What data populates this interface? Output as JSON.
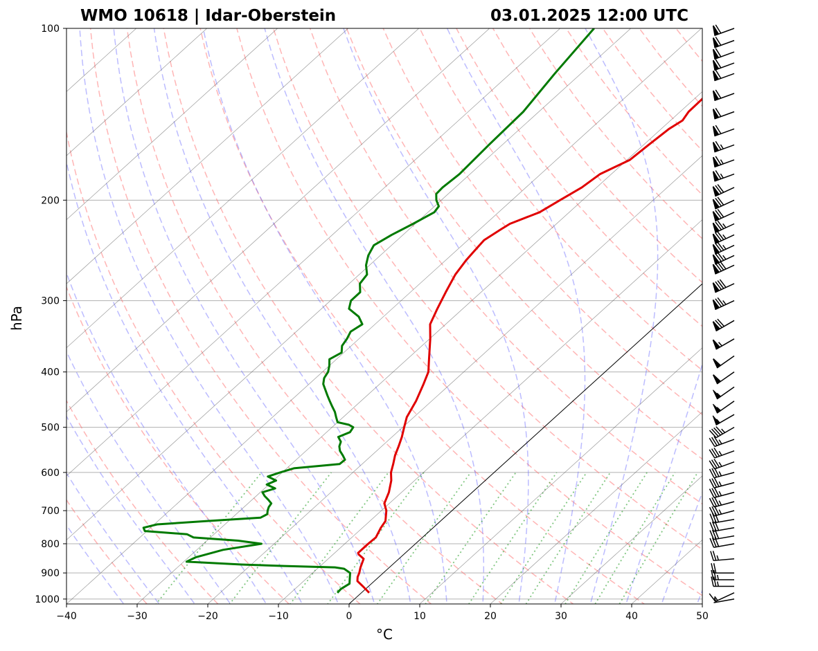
{
  "title_left": "WMO 10618 | Idar-Oberstein",
  "title_right": "03.01.2025 12:00 UTC",
  "colors": {
    "temperature": "#e00000",
    "dewpoint": "#007a00",
    "dry_adiabat": "#ff6b6b",
    "moist_adiabat": "#6b6bff",
    "mixing_ratio": "#2ca02c",
    "isotherm": "#555555",
    "zero_isotherm": "#000000"
  },
  "chart_data": {
    "type": "line",
    "subtype": "skew-t log-p",
    "xlabel": "°C",
    "ylabel": "hPa",
    "xlim": [
      -40,
      50
    ],
    "ylim": [
      1020,
      100
    ],
    "y_scale": "log",
    "x_ticks": [
      "−40",
      "−30",
      "−20",
      "−10",
      "0",
      "10",
      "20",
      "30",
      "40",
      "50"
    ],
    "x_tick_values": [
      -40,
      -30,
      -20,
      -10,
      0,
      10,
      20,
      30,
      40,
      50
    ],
    "y_ticks": [
      "100",
      "200",
      "300",
      "400",
      "500",
      "600",
      "700",
      "800",
      "900",
      "1000"
    ],
    "y_tick_values": [
      100,
      200,
      300,
      400,
      500,
      600,
      700,
      800,
      900,
      1000
    ],
    "grid": true,
    "temperature": {
      "p": [
        975,
        950,
        930,
        915,
        900,
        880,
        850,
        835,
        830,
        800,
        780,
        750,
        730,
        700,
        680,
        650,
        620,
        600,
        580,
        560,
        540,
        520,
        500,
        480,
        450,
        420,
        400,
        380,
        350,
        330,
        310,
        290,
        270,
        255,
        245,
        235,
        225,
        220,
        210,
        200,
        190,
        180,
        170,
        160,
        150,
        145,
        140,
        130,
        120,
        110,
        100
      ],
      "t": [
        1.1,
        -0.8,
        -2.4,
        -3.0,
        -3.4,
        -4.1,
        -5.0,
        -6.4,
        -6.7,
        -6.7,
        -6.6,
        -7.4,
        -7.8,
        -9.3,
        -10.7,
        -11.8,
        -13.3,
        -14.6,
        -15.6,
        -16.7,
        -17.6,
        -18.6,
        -19.8,
        -21.0,
        -22.2,
        -23.8,
        -25.0,
        -26.9,
        -29.9,
        -32.2,
        -33.6,
        -35.0,
        -36.4,
        -37.1,
        -37.4,
        -37.7,
        -37.0,
        -36.6,
        -34.2,
        -33.2,
        -32.1,
        -31.6,
        -29.6,
        -29.3,
        -28.9,
        -28.3,
        -28.8,
        -28.9,
        -29.5,
        -30.0,
        -30.8
      ]
    },
    "dewpoint": {
      "p": [
        975,
        960,
        940,
        920,
        900,
        885,
        880,
        875,
        870,
        860,
        845,
        820,
        800,
        790,
        780,
        770,
        760,
        750,
        740,
        730,
        720,
        710,
        700,
        690,
        680,
        670,
        660,
        650,
        640,
        630,
        620,
        610,
        600,
        590,
        580,
        570,
        560,
        550,
        540,
        530,
        520,
        510,
        500,
        495,
        490,
        480,
        470,
        460,
        450,
        440,
        420,
        410,
        400,
        390,
        380,
        370,
        360,
        350,
        340,
        330,
        320,
        310,
        300,
        290,
        280,
        270,
        260,
        250,
        240,
        230,
        220,
        210,
        205,
        200,
        195,
        190,
        180,
        160,
        140,
        120,
        100
      ],
      "td": [
        -3.4,
        -3.5,
        -3.1,
        -3.9,
        -4.7,
        -6.2,
        -7.7,
        -15.1,
        -21.4,
        -29.6,
        -29.0,
        -26.3,
        -21.8,
        -25.6,
        -32.4,
        -33.8,
        -40.3,
        -41.0,
        -39.6,
        -33.2,
        -26.0,
        -25.6,
        -26.1,
        -26.5,
        -26.7,
        -27.7,
        -28.8,
        -29.7,
        -28.5,
        -30.3,
        -29.6,
        -31.4,
        -30.3,
        -29.0,
        -23.2,
        -23.1,
        -24.1,
        -25.2,
        -26.0,
        -26.5,
        -27.6,
        -26.7,
        -27.0,
        -28.0,
        -30.0,
        -31.0,
        -32.0,
        -33.2,
        -34.4,
        -35.6,
        -38.0,
        -38.8,
        -39.2,
        -40.0,
        -41.0,
        -40.3,
        -41.3,
        -41.7,
        -42.3,
        -41.8,
        -43.5,
        -46.1,
        -47.1,
        -47.1,
        -48.5,
        -48.9,
        -50.5,
        -51.7,
        -52.5,
        -51.6,
        -50.3,
        -49.1,
        -49.4,
        -50.7,
        -51.7,
        -51.8,
        -51.5,
        -51.9,
        -52.2,
        -53.7,
        -55.2
      ]
    },
    "wind_barbs": {
      "p": [
        1000,
        975,
        950,
        925,
        900,
        850,
        800,
        775,
        750,
        725,
        700,
        675,
        650,
        625,
        600,
        575,
        550,
        525,
        500,
        475,
        450,
        425,
        400,
        375,
        350,
        325,
        300,
        280,
        260,
        250,
        240,
        230,
        220,
        210,
        200,
        190,
        180,
        170,
        160,
        150,
        140,
        130,
        120,
        115,
        110,
        105,
        100
      ],
      "speed_kt": [
        5,
        15,
        25,
        25,
        20,
        25,
        30,
        30,
        30,
        30,
        35,
        35,
        35,
        35,
        35,
        35,
        35,
        35,
        45,
        55,
        55,
        55,
        60,
        60,
        65,
        80,
        85,
        90,
        90,
        85,
        85,
        85,
        85,
        80,
        80,
        80,
        75,
        75,
        75,
        70,
        70,
        70,
        70,
        70,
        70,
        70,
        70
      ],
      "dir_deg": [
        260,
        245,
        270,
        270,
        270,
        265,
        260,
        260,
        260,
        260,
        255,
        255,
        255,
        255,
        255,
        250,
        250,
        250,
        240,
        240,
        235,
        235,
        235,
        235,
        240,
        240,
        245,
        245,
        245,
        245,
        245,
        245,
        245,
        245,
        245,
        245,
        250,
        250,
        250,
        250,
        250,
        250,
        250,
        250,
        250,
        250,
        250
      ]
    }
  }
}
